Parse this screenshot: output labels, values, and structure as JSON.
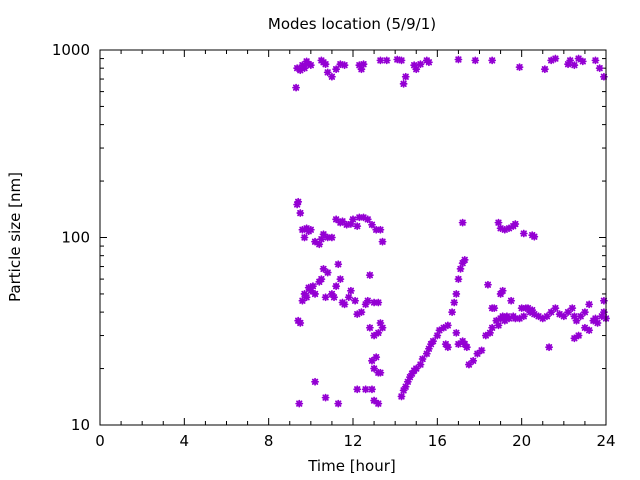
{
  "chart_data": {
    "type": "scatter",
    "title": "Modes location (5/9/1)",
    "xlabel": "Time [hour]",
    "ylabel": "Particle size [nm]",
    "xlim": [
      0,
      24
    ],
    "ylim": [
      10,
      1000
    ],
    "yscale": "log",
    "xticks": [
      0,
      4,
      8,
      12,
      16,
      20,
      24
    ],
    "xtick_labels": [
      "0",
      "4",
      "8",
      "12",
      "16",
      "20",
      "24"
    ],
    "yticks": [
      10,
      100,
      1000
    ],
    "ytick_labels": [
      "10",
      "100",
      "1000"
    ],
    "grid": false,
    "legend": "none",
    "marker_color": "#9400d3",
    "series": [
      {
        "points": [
          [
            9.3,
            630
          ],
          [
            9.35,
            800
          ],
          [
            9.5,
            780
          ],
          [
            9.6,
            830
          ],
          [
            9.7,
            800
          ],
          [
            9.8,
            870
          ],
          [
            9.9,
            840
          ],
          [
            10.0,
            830
          ],
          [
            10.5,
            880
          ],
          [
            10.6,
            860
          ],
          [
            10.7,
            840
          ],
          [
            10.8,
            760
          ],
          [
            11.0,
            720
          ],
          [
            11.2,
            790
          ],
          [
            11.4,
            840
          ],
          [
            11.6,
            830
          ],
          [
            12.3,
            830
          ],
          [
            12.4,
            790
          ],
          [
            12.5,
            840
          ],
          [
            13.3,
            880
          ],
          [
            13.6,
            880
          ],
          [
            14.1,
            890
          ],
          [
            14.3,
            880
          ],
          [
            14.4,
            660
          ],
          [
            14.5,
            720
          ],
          [
            14.9,
            830
          ],
          [
            15.0,
            790
          ],
          [
            15.2,
            840
          ],
          [
            15.5,
            880
          ],
          [
            15.6,
            860
          ],
          [
            17.0,
            890
          ],
          [
            17.8,
            880
          ],
          [
            18.6,
            880
          ],
          [
            19.9,
            810
          ],
          [
            21.1,
            790
          ],
          [
            21.4,
            880
          ],
          [
            21.6,
            900
          ],
          [
            22.2,
            840
          ],
          [
            22.3,
            880
          ],
          [
            22.5,
            830
          ],
          [
            22.7,
            900
          ],
          [
            22.9,
            870
          ],
          [
            23.5,
            880
          ],
          [
            23.7,
            800
          ],
          [
            23.9,
            720
          ],
          [
            9.35,
            150
          ],
          [
            9.4,
            155
          ],
          [
            9.5,
            135
          ],
          [
            9.6,
            110
          ],
          [
            9.7,
            100
          ],
          [
            9.8,
            112
          ],
          [
            9.9,
            108
          ],
          [
            10.0,
            110
          ],
          [
            10.2,
            95
          ],
          [
            10.4,
            92
          ],
          [
            10.5,
            98
          ],
          [
            10.6,
            104
          ],
          [
            10.8,
            100
          ],
          [
            11.0,
            100
          ],
          [
            11.2,
            125
          ],
          [
            11.4,
            120
          ],
          [
            11.5,
            122
          ],
          [
            11.7,
            117
          ],
          [
            11.9,
            118
          ],
          [
            12.0,
            125
          ],
          [
            12.2,
            115
          ],
          [
            12.3,
            128
          ],
          [
            12.5,
            128
          ],
          [
            12.7,
            125
          ],
          [
            12.9,
            117
          ],
          [
            13.1,
            110
          ],
          [
            13.3,
            110
          ],
          [
            13.4,
            95
          ],
          [
            17.2,
            120
          ],
          [
            18.9,
            120
          ],
          [
            19.0,
            112
          ],
          [
            19.2,
            110
          ],
          [
            19.4,
            112
          ],
          [
            19.6,
            115
          ],
          [
            19.7,
            118
          ],
          [
            20.1,
            105
          ],
          [
            20.5,
            103
          ],
          [
            20.6,
            101
          ],
          [
            9.4,
            36
          ],
          [
            9.5,
            35
          ],
          [
            9.6,
            46
          ],
          [
            9.7,
            50
          ],
          [
            9.8,
            48
          ],
          [
            9.9,
            54
          ],
          [
            10.0,
            52
          ],
          [
            10.1,
            55
          ],
          [
            10.2,
            50
          ],
          [
            10.4,
            58
          ],
          [
            10.5,
            60
          ],
          [
            10.6,
            68
          ],
          [
            10.8,
            65
          ],
          [
            10.7,
            48
          ],
          [
            11.0,
            50
          ],
          [
            11.1,
            48
          ],
          [
            11.2,
            55
          ],
          [
            11.3,
            72
          ],
          [
            11.4,
            60
          ],
          [
            11.5,
            45
          ],
          [
            11.6,
            44
          ],
          [
            11.8,
            48
          ],
          [
            11.9,
            52
          ],
          [
            12.1,
            46
          ],
          [
            12.2,
            39
          ],
          [
            12.4,
            40
          ],
          [
            12.6,
            44
          ],
          [
            12.7,
            46
          ],
          [
            12.8,
            63
          ],
          [
            13.0,
            45
          ],
          [
            13.2,
            45
          ],
          [
            13.3,
            35
          ],
          [
            13.4,
            33
          ],
          [
            13.2,
            31
          ],
          [
            13.0,
            30
          ],
          [
            12.8,
            33
          ],
          [
            12.9,
            22
          ],
          [
            13.0,
            20
          ],
          [
            13.1,
            23
          ],
          [
            13.2,
            19
          ],
          [
            13.3,
            19
          ],
          [
            9.45,
            13
          ],
          [
            10.2,
            17
          ],
          [
            10.7,
            14
          ],
          [
            11.3,
            13
          ],
          [
            12.2,
            15.5
          ],
          [
            12.6,
            15.5
          ],
          [
            12.9,
            15.5
          ],
          [
            13.0,
            13.5
          ],
          [
            13.2,
            13
          ],
          [
            14.3,
            14.2
          ],
          [
            14.4,
            15.3
          ],
          [
            14.5,
            16
          ],
          [
            14.6,
            17
          ],
          [
            14.7,
            18
          ],
          [
            14.8,
            18.8
          ],
          [
            14.9,
            19.5
          ],
          [
            15.0,
            20
          ],
          [
            15.2,
            21
          ],
          [
            15.3,
            22.5
          ],
          [
            15.5,
            24
          ],
          [
            15.6,
            25.5
          ],
          [
            15.7,
            27
          ],
          [
            15.8,
            28
          ],
          [
            16.0,
            30
          ],
          [
            16.1,
            32
          ],
          [
            16.3,
            33
          ],
          [
            16.5,
            34
          ],
          [
            16.7,
            40
          ],
          [
            16.8,
            45
          ],
          [
            16.9,
            50
          ],
          [
            17.0,
            60
          ],
          [
            17.1,
            68
          ],
          [
            17.2,
            73
          ],
          [
            17.3,
            76
          ],
          [
            16.4,
            27
          ],
          [
            16.5,
            26
          ],
          [
            17.0,
            27
          ],
          [
            17.2,
            28
          ],
          [
            17.3,
            27
          ],
          [
            17.4,
            26
          ],
          [
            16.9,
            31
          ],
          [
            17.5,
            21
          ],
          [
            17.7,
            22
          ],
          [
            17.9,
            24
          ],
          [
            18.1,
            25
          ],
          [
            18.3,
            30
          ],
          [
            18.5,
            31
          ],
          [
            18.6,
            33
          ],
          [
            18.8,
            36
          ],
          [
            18.9,
            34
          ],
          [
            19.0,
            37
          ],
          [
            19.1,
            38
          ],
          [
            19.2,
            36
          ],
          [
            19.3,
            38
          ],
          [
            19.4,
            37
          ],
          [
            19.6,
            38
          ],
          [
            19.7,
            37
          ],
          [
            19.9,
            37
          ],
          [
            20.1,
            38
          ],
          [
            20.2,
            42
          ],
          [
            20.4,
            40
          ],
          [
            20.5,
            41
          ],
          [
            20.6,
            39
          ],
          [
            20.8,
            38
          ],
          [
            21.0,
            37
          ],
          [
            21.2,
            38
          ],
          [
            21.4,
            40
          ],
          [
            21.6,
            42
          ],
          [
            21.8,
            39
          ],
          [
            22.0,
            38
          ],
          [
            22.2,
            40
          ],
          [
            22.4,
            42
          ],
          [
            22.5,
            38
          ],
          [
            22.6,
            36
          ],
          [
            22.8,
            38
          ],
          [
            23.0,
            40
          ],
          [
            23.2,
            44
          ],
          [
            23.4,
            36
          ],
          [
            23.5,
            37
          ],
          [
            23.6,
            35
          ],
          [
            23.8,
            38
          ],
          [
            23.9,
            40
          ],
          [
            24.0,
            37
          ],
          [
            18.4,
            56
          ],
          [
            18.6,
            42
          ],
          [
            18.7,
            42
          ],
          [
            19.0,
            50
          ],
          [
            19.1,
            52
          ],
          [
            19.5,
            46
          ],
          [
            20.0,
            42
          ],
          [
            20.3,
            42
          ],
          [
            21.3,
            26
          ],
          [
            22.5,
            29
          ],
          [
            22.7,
            30
          ],
          [
            23.0,
            33
          ],
          [
            23.2,
            32
          ],
          [
            23.9,
            46
          ]
        ]
      }
    ]
  }
}
